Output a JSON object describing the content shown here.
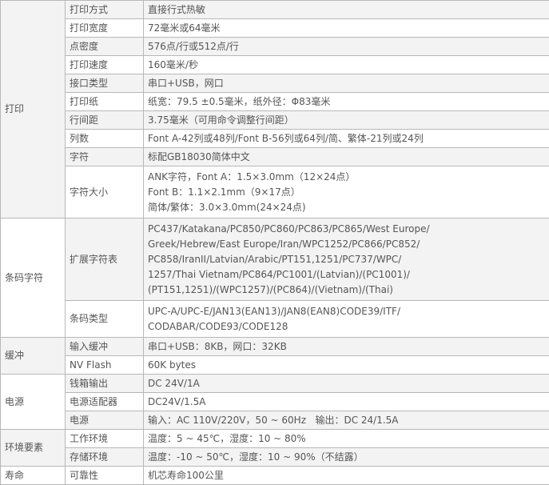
{
  "groups": [
    {
      "name": "打印",
      "rows": [
        {
          "label": "打印方式",
          "value": [
            "直接行式热敏"
          ]
        },
        {
          "label": "打印宽度",
          "value": [
            "72毫米或64毫米"
          ]
        },
        {
          "label": "点密度",
          "value": [
            "576点/行或512点/行"
          ]
        },
        {
          "label": "打印速度",
          "value": [
            "160毫米/秒"
          ]
        },
        {
          "label": "接口类型",
          "value": [
            "串口+USB，网口"
          ]
        },
        {
          "label": "打印纸",
          "value": [
            "纸宽：79.5 ±0.5毫米，纸外径：Φ83毫米"
          ]
        },
        {
          "label": "行间距",
          "value": [
            "3.75毫米（可用命令调整行间距）"
          ]
        },
        {
          "label": "列数",
          "value": [
            "Font A-42列或48列/Font B-56列或64列/简、繁体-21列或24列"
          ]
        },
        {
          "label": "字符",
          "value": [
            "标配GB18030简体中文"
          ]
        },
        {
          "label": "字符大小",
          "value": [
            "ANK字符，Font A：1.5×3.0mm（12×24点）",
            "Font B：1.1×2.1mm（9×17点）",
            "简体/繁体：3.0×3.0mm(24×24点)"
          ]
        }
      ]
    },
    {
      "name": "条码字符",
      "rows": [
        {
          "label": "扩展字符表",
          "value": [
            "PC437/Katakana/PC850/PC860/PC863/PC865/West Europe/",
            "Greek/Hebrew/East Europe/Iran/WPC1252/PC866/PC852/",
            "PC858/IranII/Latvian/Arabic/PT151,1251/PC737/WPC/",
            "1257/Thai Vietnam/PC864/PC1001/(Latvian)/(PC1001)/",
            "(PT151,1251)/(WPC1257)/(PC864)/(Vietnam)/(Thai)"
          ]
        },
        {
          "label": "条码类型",
          "value": [
            "UPC-A/UPC-E/JAN13(EAN13)/JAN8(EAN8)CODE39/ITF/",
            "CODABAR/CODE93/CODE128"
          ]
        }
      ]
    },
    {
      "name": "缓冲",
      "rows": [
        {
          "label": "输入缓冲",
          "value": [
            "串口+USB：8KB，网口：32KB"
          ]
        },
        {
          "label": "NV Flash",
          "value": [
            "60K bytes"
          ]
        }
      ]
    },
    {
      "name": "电源",
      "rows": [
        {
          "label": "钱箱输出",
          "value": [
            "DC 24V/1A"
          ]
        },
        {
          "label": "电源适配器",
          "value": [
            "DC24V/1.5A"
          ]
        },
        {
          "label": "电源",
          "value": [
            "输入：AC 110V/220V，50 ~ 60Hz   输出：DC 24/1.5A"
          ]
        }
      ]
    },
    {
      "name": "环境要素",
      "rows": [
        {
          "label": "工作环境",
          "value": [
            "温度：5 ~ 45℃，湿度：10 ~ 80%"
          ]
        },
        {
          "label": "存储环境",
          "value": [
            "温度：-10 ~ 50℃，湿度：10 ~ 90%（不结露）"
          ]
        }
      ]
    },
    {
      "name": "寿命",
      "rows": [
        {
          "label": "可靠性",
          "value": [
            "机芯寿命100公里"
          ]
        }
      ]
    }
  ]
}
